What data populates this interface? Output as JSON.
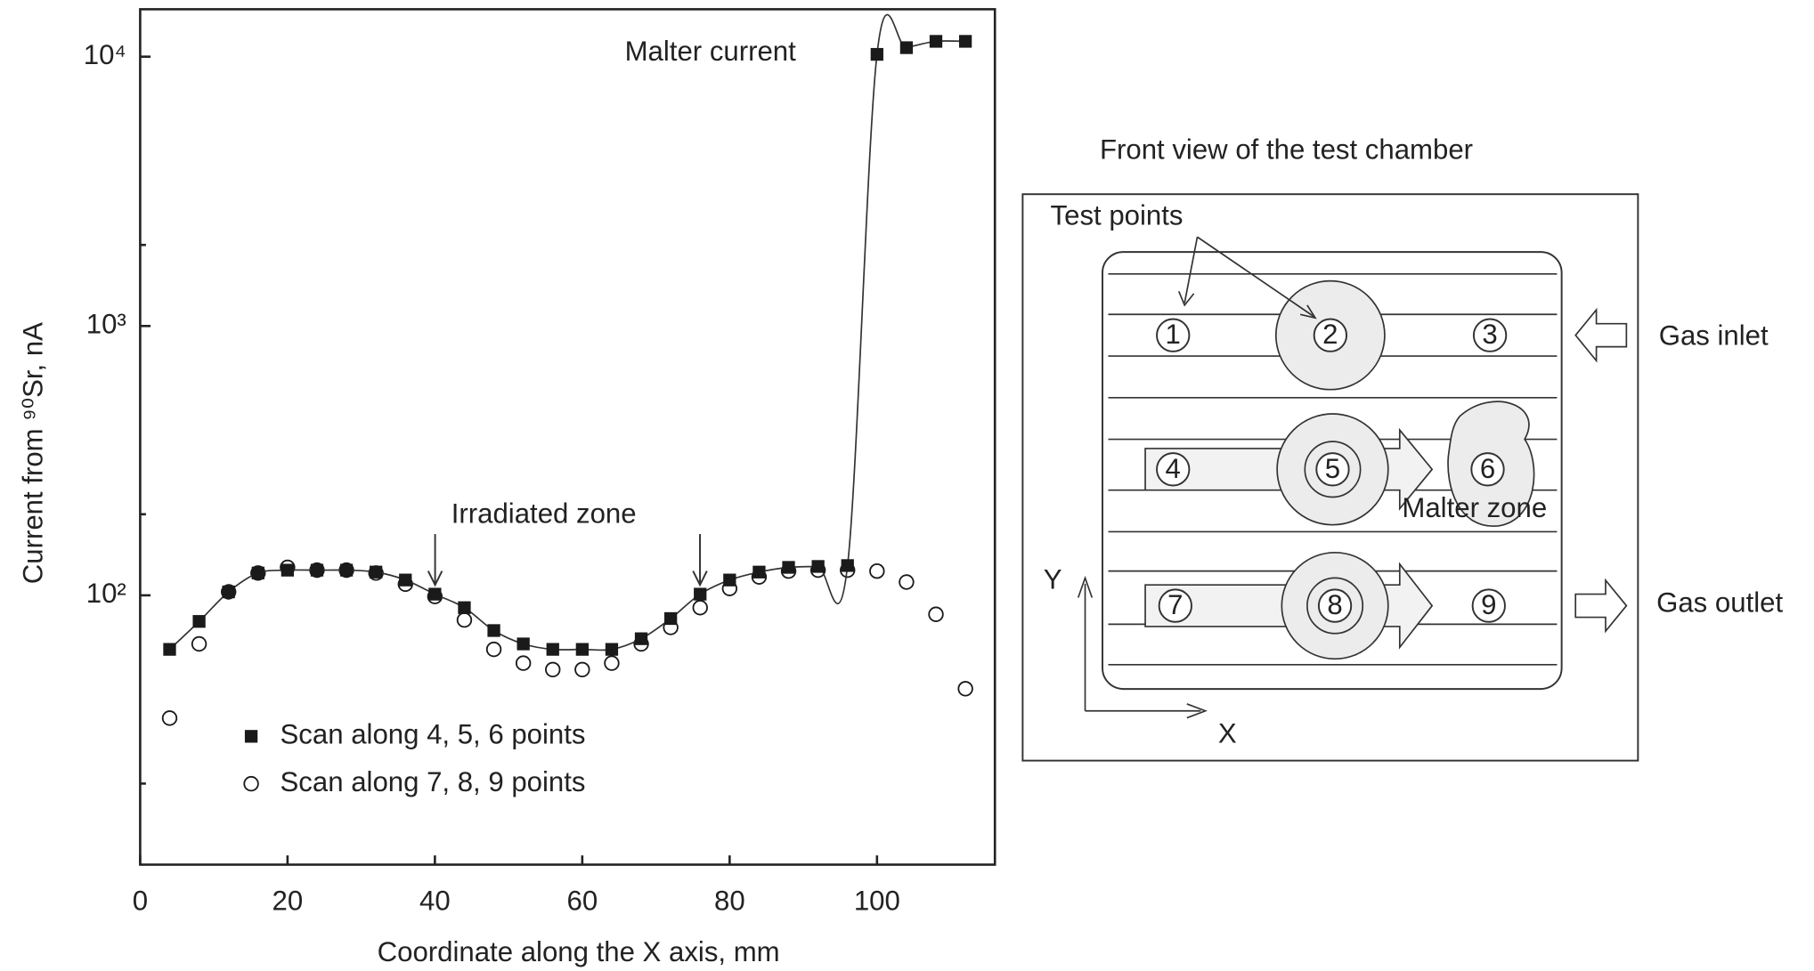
{
  "chart_data": {
    "type": "scatter",
    "x_label": "Coordinate along the X axis, mm",
    "y_label": "Current from ⁹⁰Sr, nA",
    "xlim": [
      0,
      116
    ],
    "xticks": [
      0,
      20,
      40,
      60,
      80,
      100
    ],
    "ylim": [
      10,
      15000
    ],
    "y_log": true,
    "yticks": [
      {
        "value": 100,
        "label": "10²"
      },
      {
        "value": 1000,
        "label": "10³"
      },
      {
        "value": 10000,
        "label": "10⁴"
      }
    ],
    "yminorticks": [
      20,
      200,
      2000
    ],
    "legend": "lower left",
    "annotations": [
      "Malter current",
      "Irradiated zone"
    ],
    "series": [
      {
        "name": "Scan along 4, 5, 6 points",
        "marker": "square",
        "color": "#1a1a1a",
        "line": true,
        "x": [
          4,
          8,
          12,
          16,
          20,
          24,
          28,
          32,
          36,
          40,
          44,
          48,
          52,
          56,
          60,
          64,
          68,
          72,
          76,
          80,
          84,
          88,
          92,
          96,
          100,
          104,
          108,
          112
        ],
        "values": [
          63,
          80,
          103,
          121,
          124,
          124,
          124,
          122,
          114,
          101,
          90,
          74,
          66,
          63,
          63,
          63,
          69,
          82,
          101,
          114,
          122,
          127,
          128,
          129,
          10200,
          10800,
          11400,
          11400
        ]
      },
      {
        "name": "Scan along 7, 8, 9 points",
        "marker": "circle",
        "color": "#1a1a1a",
        "line": false,
        "x": [
          4,
          8,
          12,
          16,
          20,
          24,
          28,
          32,
          36,
          40,
          44,
          48,
          52,
          56,
          60,
          64,
          68,
          72,
          76,
          80,
          84,
          88,
          92,
          96,
          100,
          104,
          108,
          112
        ],
        "values": [
          35,
          66,
          103,
          121,
          127,
          124,
          124,
          121,
          110,
          99,
          81,
          63,
          56,
          53,
          53,
          56,
          66,
          76,
          90,
          106,
          117,
          123,
          124,
          124,
          123,
          112,
          85,
          45
        ]
      }
    ]
  },
  "diagram": {
    "title": "Front view of the test chamber",
    "test_points_label": "Test points",
    "points": [
      "1",
      "2",
      "3",
      "4",
      "5",
      "6",
      "7",
      "8",
      "9"
    ],
    "malter_zone": "Malter zone",
    "gas_inlet": "Gas inlet",
    "gas_outlet": "Gas outlet",
    "x_axis": "X",
    "y_axis": "Y"
  }
}
